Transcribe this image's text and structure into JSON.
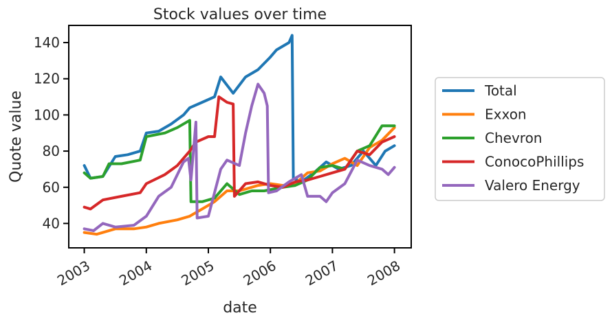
{
  "chart_data": {
    "type": "line",
    "title": "Stock values over time",
    "xlabel": "date",
    "ylabel": "Quote value",
    "xlim": [
      2002.75,
      2008.27
    ],
    "ylim": [
      26.5,
      149.5
    ],
    "x_ticks": [
      2003,
      2004,
      2005,
      2006,
      2007,
      2008
    ],
    "x_tick_labels": [
      "2003",
      "2004",
      "2005",
      "2006",
      "2007",
      "2008"
    ],
    "y_ticks": [
      40,
      60,
      80,
      100,
      120,
      140
    ],
    "y_tick_labels": [
      "40",
      "60",
      "80",
      "100",
      "120",
      "140"
    ],
    "legend_position": "outside-right",
    "grid": false,
    "series": [
      {
        "name": "Total",
        "color": "#1f77b4",
        "points": [
          [
            2003.0,
            72
          ],
          [
            2003.1,
            65
          ],
          [
            2003.3,
            66
          ],
          [
            2003.5,
            77
          ],
          [
            2003.7,
            78
          ],
          [
            2003.9,
            80
          ],
          [
            2004.0,
            90
          ],
          [
            2004.2,
            91
          ],
          [
            2004.4,
            95
          ],
          [
            2004.6,
            100
          ],
          [
            2004.7,
            104
          ],
          [
            2004.9,
            107
          ],
          [
            2005.1,
            110
          ],
          [
            2005.2,
            121
          ],
          [
            2005.4,
            112
          ],
          [
            2005.6,
            121
          ],
          [
            2005.8,
            125
          ],
          [
            2006.0,
            132
          ],
          [
            2006.1,
            136
          ],
          [
            2006.3,
            140
          ],
          [
            2006.35,
            144
          ],
          [
            2006.37,
            65
          ],
          [
            2006.5,
            63
          ],
          [
            2006.7,
            68
          ],
          [
            2006.9,
            74
          ],
          [
            2007.1,
            70
          ],
          [
            2007.3,
            72
          ],
          [
            2007.5,
            80
          ],
          [
            2007.7,
            72
          ],
          [
            2007.85,
            80
          ],
          [
            2008.0,
            83
          ]
        ]
      },
      {
        "name": "Exxon",
        "color": "#ff7f0e",
        "points": [
          [
            2003.0,
            35
          ],
          [
            2003.2,
            34
          ],
          [
            2003.5,
            37
          ],
          [
            2003.8,
            37
          ],
          [
            2004.0,
            38
          ],
          [
            2004.2,
            40
          ],
          [
            2004.5,
            42
          ],
          [
            2004.7,
            44
          ],
          [
            2004.9,
            48
          ],
          [
            2005.1,
            52
          ],
          [
            2005.3,
            58
          ],
          [
            2005.5,
            58
          ],
          [
            2005.8,
            61
          ],
          [
            2006.0,
            62
          ],
          [
            2006.2,
            61
          ],
          [
            2006.4,
            62
          ],
          [
            2006.6,
            68
          ],
          [
            2006.8,
            69
          ],
          [
            2007.0,
            73
          ],
          [
            2007.2,
            76
          ],
          [
            2007.4,
            72
          ],
          [
            2007.6,
            82
          ],
          [
            2007.8,
            86
          ],
          [
            2008.0,
            93
          ]
        ]
      },
      {
        "name": "Chevron",
        "color": "#2ca02c",
        "points": [
          [
            2003.0,
            68
          ],
          [
            2003.1,
            65
          ],
          [
            2003.3,
            66
          ],
          [
            2003.4,
            73
          ],
          [
            2003.6,
            73
          ],
          [
            2003.9,
            75
          ],
          [
            2004.0,
            88
          ],
          [
            2004.3,
            90
          ],
          [
            2004.5,
            93
          ],
          [
            2004.7,
            97
          ],
          [
            2004.72,
            52
          ],
          [
            2004.9,
            52
          ],
          [
            2005.1,
            54
          ],
          [
            2005.3,
            62
          ],
          [
            2005.5,
            56
          ],
          [
            2005.7,
            58
          ],
          [
            2005.9,
            58
          ],
          [
            2006.2,
            60
          ],
          [
            2006.4,
            61
          ],
          [
            2006.6,
            64
          ],
          [
            2006.8,
            71
          ],
          [
            2007.0,
            72
          ],
          [
            2007.2,
            70
          ],
          [
            2007.4,
            80
          ],
          [
            2007.6,
            83
          ],
          [
            2007.8,
            94
          ],
          [
            2008.0,
            94
          ]
        ]
      },
      {
        "name": "ConocoPhillips",
        "color": "#d62728",
        "points": [
          [
            2003.0,
            49
          ],
          [
            2003.1,
            48
          ],
          [
            2003.3,
            53
          ],
          [
            2003.6,
            55
          ],
          [
            2003.9,
            57
          ],
          [
            2004.0,
            62
          ],
          [
            2004.3,
            67
          ],
          [
            2004.5,
            72
          ],
          [
            2004.7,
            80
          ],
          [
            2004.8,
            85
          ],
          [
            2005.0,
            88
          ],
          [
            2005.1,
            88
          ],
          [
            2005.17,
            110
          ],
          [
            2005.3,
            107
          ],
          [
            2005.4,
            106
          ],
          [
            2005.42,
            55
          ],
          [
            2005.6,
            62
          ],
          [
            2005.8,
            63
          ],
          [
            2006.0,
            61
          ],
          [
            2006.2,
            60
          ],
          [
            2006.4,
            63
          ],
          [
            2006.6,
            64
          ],
          [
            2006.8,
            66
          ],
          [
            2007.0,
            68
          ],
          [
            2007.2,
            70
          ],
          [
            2007.4,
            80
          ],
          [
            2007.6,
            78
          ],
          [
            2007.8,
            85
          ],
          [
            2008.0,
            88
          ]
        ]
      },
      {
        "name": "Valero Energy",
        "color": "#9467bd",
        "points": [
          [
            2003.0,
            37
          ],
          [
            2003.15,
            36
          ],
          [
            2003.3,
            40
          ],
          [
            2003.5,
            38
          ],
          [
            2003.8,
            39
          ],
          [
            2004.0,
            44
          ],
          [
            2004.2,
            55
          ],
          [
            2004.4,
            60
          ],
          [
            2004.6,
            74
          ],
          [
            2004.68,
            76
          ],
          [
            2004.72,
            64
          ],
          [
            2004.8,
            96
          ],
          [
            2004.82,
            43
          ],
          [
            2005.0,
            44
          ],
          [
            2005.2,
            70
          ],
          [
            2005.3,
            75
          ],
          [
            2005.5,
            72
          ],
          [
            2005.6,
            90
          ],
          [
            2005.7,
            105
          ],
          [
            2005.8,
            117
          ],
          [
            2005.9,
            112
          ],
          [
            2005.95,
            105
          ],
          [
            2005.97,
            57
          ],
          [
            2006.1,
            58
          ],
          [
            2006.3,
            63
          ],
          [
            2006.5,
            67
          ],
          [
            2006.6,
            55
          ],
          [
            2006.8,
            55
          ],
          [
            2006.9,
            52
          ],
          [
            2007.0,
            57
          ],
          [
            2007.2,
            62
          ],
          [
            2007.4,
            75
          ],
          [
            2007.6,
            72
          ],
          [
            2007.8,
            70
          ],
          [
            2007.9,
            67
          ],
          [
            2008.0,
            71
          ]
        ]
      }
    ]
  }
}
